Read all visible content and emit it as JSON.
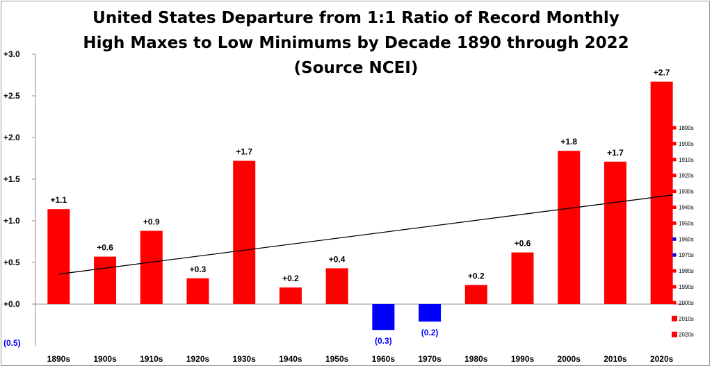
{
  "chart_data": {
    "type": "bar",
    "title": [
      "United States Departure from 1:1 Ratio of Record Monthly",
      "High Maxes to Low Minimums by Decade 1890 through 2022",
      "(Source NCEI)"
    ],
    "xlabel": "",
    "ylabel": "",
    "categories": [
      "1890s",
      "1900s",
      "1910s",
      "1920s",
      "1930s",
      "1940s",
      "1950s",
      "1960s",
      "1970s",
      "1980s",
      "1990s",
      "2000s",
      "2010s",
      "2020s"
    ],
    "values": [
      1.14,
      0.57,
      0.88,
      0.31,
      1.72,
      0.2,
      0.43,
      -0.31,
      -0.21,
      0.23,
      0.62,
      1.84,
      1.71,
      2.67
    ],
    "data_labels": [
      "+1.1",
      "+0.6",
      "+0.9",
      "+0.3",
      "+1.7",
      "+0.2",
      "+0.4",
      "(0.3)",
      "(0.2)",
      "+0.2",
      "+0.6",
      "+1.8",
      "+1.7",
      "+2.7"
    ],
    "y_ticks": [
      3.0,
      2.5,
      2.0,
      1.5,
      1.0,
      0.5,
      0.0
    ],
    "y_tick_labels": [
      "+3.0",
      "+2.5",
      "+2.0",
      "+1.5",
      "+1.0",
      "+0.5",
      "+0.0"
    ],
    "y_bottom_label": "(0.5)",
    "ylim": [
      -0.5,
      3.0
    ],
    "trendline": {
      "start": 0.36,
      "end": 1.31
    },
    "legend": {
      "placement": "right",
      "entries": [
        "1890s",
        "1900s",
        "1910s",
        "1920s",
        "1930s",
        "1940s",
        "1950s",
        "1960s",
        "1970s",
        "1980s",
        "1990s",
        "2000s",
        "2010s",
        "2020s"
      ]
    },
    "colors": {
      "positive": "#ff0000",
      "negative": "#0000ff",
      "trend": "#000000",
      "axis": "#8c8c8c"
    },
    "grid": false
  }
}
